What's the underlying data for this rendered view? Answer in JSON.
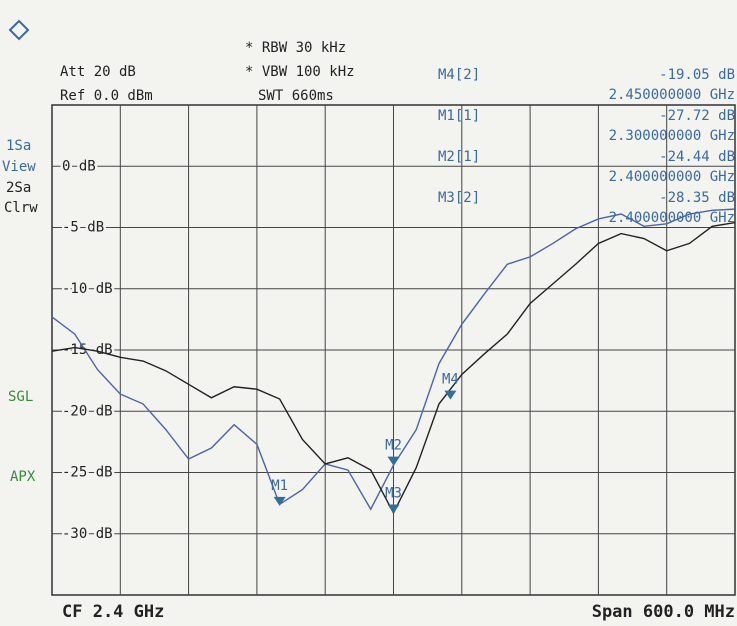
{
  "chart_data": {
    "type": "line",
    "header": {
      "att": "Att  20 dB",
      "ref": "Ref  0.0 dBm",
      "rbw": "* RBW 30 kHz",
      "vbw": "* VBW 100 kHz",
      "swt": "SWT 660ms"
    },
    "side_labels": {
      "trace1": "1Sa",
      "view": "View",
      "trace2": "2Sa",
      "clrw": "Clrw",
      "sgl": "SGL",
      "apx": "APX"
    },
    "center": "CF 2.4 GHz",
    "span": "Span 600.0 MHz",
    "xlim": [
      2.1,
      2.7
    ],
    "ylim": [
      -35,
      5
    ],
    "yticks": [
      {
        "value": 0,
        "label": "0 dB"
      },
      {
        "value": -5,
        "label": "-5 dB"
      },
      {
        "value": -10,
        "label": "-10 dB"
      },
      {
        "value": -15,
        "label": "-15 dB"
      },
      {
        "value": -20,
        "label": "-20 dB"
      },
      {
        "value": -25,
        "label": "-25 dB"
      },
      {
        "value": -30,
        "label": "-30 dB"
      }
    ],
    "grid": true,
    "x": [
      2.1,
      2.12,
      2.14,
      2.16,
      2.18,
      2.2,
      2.22,
      2.24,
      2.26,
      2.28,
      2.3,
      2.32,
      2.34,
      2.36,
      2.38,
      2.4,
      2.42,
      2.44,
      2.46,
      2.48,
      2.5,
      2.52,
      2.54,
      2.56,
      2.58,
      2.6,
      2.62,
      2.64,
      2.66,
      2.68,
      2.7
    ],
    "series": [
      {
        "color": "#4a64a8",
        "values": [
          -12.3,
          -13.7,
          -16.6,
          -18.6,
          -19.4,
          -21.5,
          -23.9,
          -23.0,
          -21.1,
          -22.7,
          -27.6,
          -26.4,
          -24.3,
          -24.8,
          -28.0,
          -24.4,
          -21.5,
          -16.1,
          -12.9,
          -10.4,
          -8.0,
          -7.4,
          -6.3,
          -5.1,
          -4.3,
          -3.9,
          -4.9,
          -4.7,
          -3.9,
          -3.6,
          -3.5
        ]
      },
      {
        "color": "#222222",
        "values": [
          -15.1,
          -14.8,
          -15.1,
          -15.6,
          -15.9,
          -16.7,
          -17.8,
          -18.9,
          -18.0,
          -18.2,
          -19.0,
          -22.3,
          -24.3,
          -23.8,
          -24.8,
          -28.3,
          -24.6,
          -19.4,
          -17.0,
          -15.3,
          -13.7,
          -11.2,
          -9.6,
          -8.0,
          -6.3,
          -5.5,
          -5.9,
          -6.9,
          -6.3,
          -4.9,
          -4.6
        ]
      }
    ],
    "markers": [
      {
        "name": "M4[2]",
        "tag": "M4",
        "y": {
          "value": -19.05,
          "label": "-19.05 dB"
        },
        "x": {
          "value": 2.45,
          "label": "2.450000000 GHz"
        }
      },
      {
        "name": "M1[1]",
        "tag": "M1",
        "y": {
          "value": -27.72,
          "label": "-27.72 dB"
        },
        "x": {
          "value": 2.3,
          "label": "2.300000000 GHz"
        }
      },
      {
        "name": "M2[1]",
        "tag": "M2",
        "y": {
          "value": -24.44,
          "label": "-24.44 dB"
        },
        "x": {
          "value": 2.4,
          "label": "2.400000000 GHz"
        }
      },
      {
        "name": "M3[2]",
        "tag": "M3",
        "y": {
          "value": -28.35,
          "label": "-28.35 dB"
        },
        "x": {
          "value": 2.4,
          "label": "2.400000000 GHz"
        }
      }
    ]
  }
}
